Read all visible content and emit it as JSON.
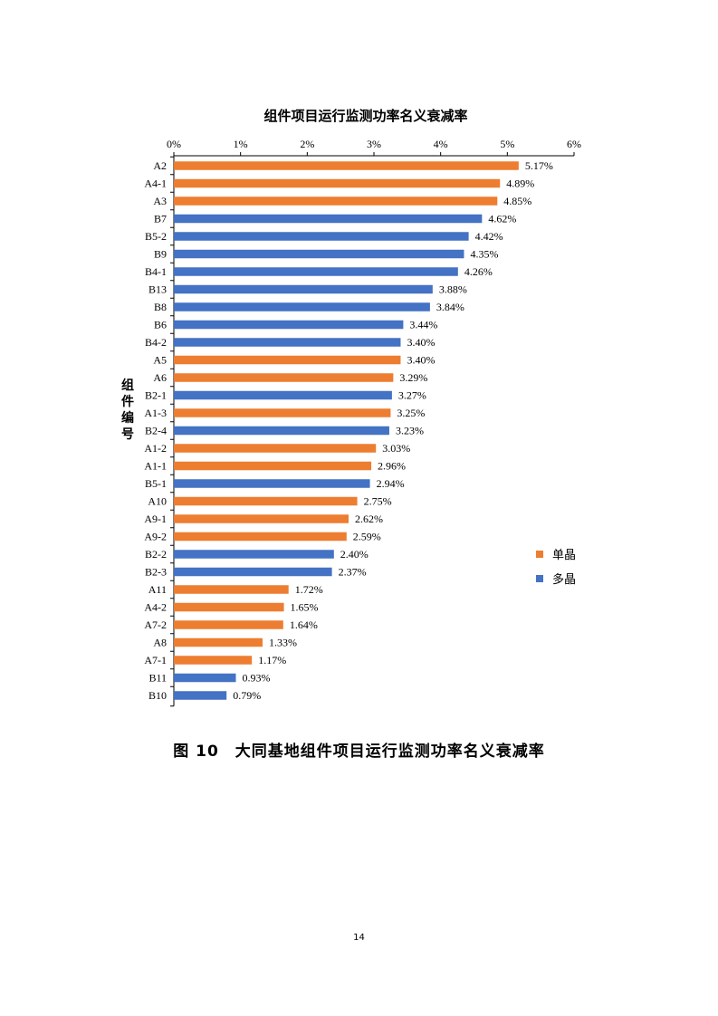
{
  "chart_data": {
    "type": "bar",
    "orientation": "horizontal",
    "title": "组件项目运行监测功率名义衰减率",
    "ylabel": "组件编号",
    "xlabel": "",
    "xlim": [
      0,
      6
    ],
    "xticks": [
      "0%",
      "1%",
      "2%",
      "3%",
      "4%",
      "5%",
      "6%"
    ],
    "x_axis_position": "top",
    "grid": false,
    "legend_placement": "right",
    "legend": [
      {
        "name": "单晶",
        "color": "#ED7D31"
      },
      {
        "name": "多晶",
        "color": "#4472C4"
      }
    ],
    "categories": [
      "A2",
      "A4-1",
      "A3",
      "B7",
      "B5-2",
      "B9",
      "B4-1",
      "B13",
      "B8",
      "B6",
      "B4-2",
      "A5",
      "A6",
      "B2-1",
      "A1-3",
      "B2-4",
      "A1-2",
      "A1-1",
      "B5-1",
      "A10",
      "A9-1",
      "A9-2",
      "B2-2",
      "B2-3",
      "A11",
      "A4-2",
      "A7-2",
      "A8",
      "A7-1",
      "B11",
      "B10"
    ],
    "values": [
      5.17,
      4.89,
      4.85,
      4.62,
      4.42,
      4.35,
      4.26,
      3.88,
      3.84,
      3.44,
      3.4,
      3.4,
      3.29,
      3.27,
      3.25,
      3.23,
      3.03,
      2.96,
      2.94,
      2.75,
      2.62,
      2.59,
      2.4,
      2.37,
      1.72,
      1.65,
      1.64,
      1.33,
      1.17,
      0.93,
      0.79
    ],
    "labels": [
      "5.17%",
      "4.89%",
      "4.85%",
      "4.62%",
      "4.42%",
      "4.35%",
      "4.26%",
      "3.88%",
      "3.84%",
      "3.44%",
      "3.40%",
      "3.40%",
      "3.29%",
      "3.27%",
      "3.25%",
      "3.23%",
      "3.03%",
      "2.96%",
      "2.94%",
      "2.75%",
      "2.62%",
      "2.59%",
      "2.40%",
      "2.37%",
      "1.72%",
      "1.65%",
      "1.64%",
      "1.33%",
      "1.17%",
      "0.93%",
      "0.79%"
    ],
    "groups": [
      0,
      0,
      0,
      1,
      1,
      1,
      1,
      1,
      1,
      1,
      1,
      0,
      0,
      1,
      0,
      1,
      0,
      0,
      1,
      0,
      0,
      0,
      1,
      1,
      0,
      0,
      0,
      0,
      0,
      1,
      1
    ]
  },
  "caption": "图 10　大同基地组件项目运行监测功率名义衰减率",
  "page_number": "14"
}
